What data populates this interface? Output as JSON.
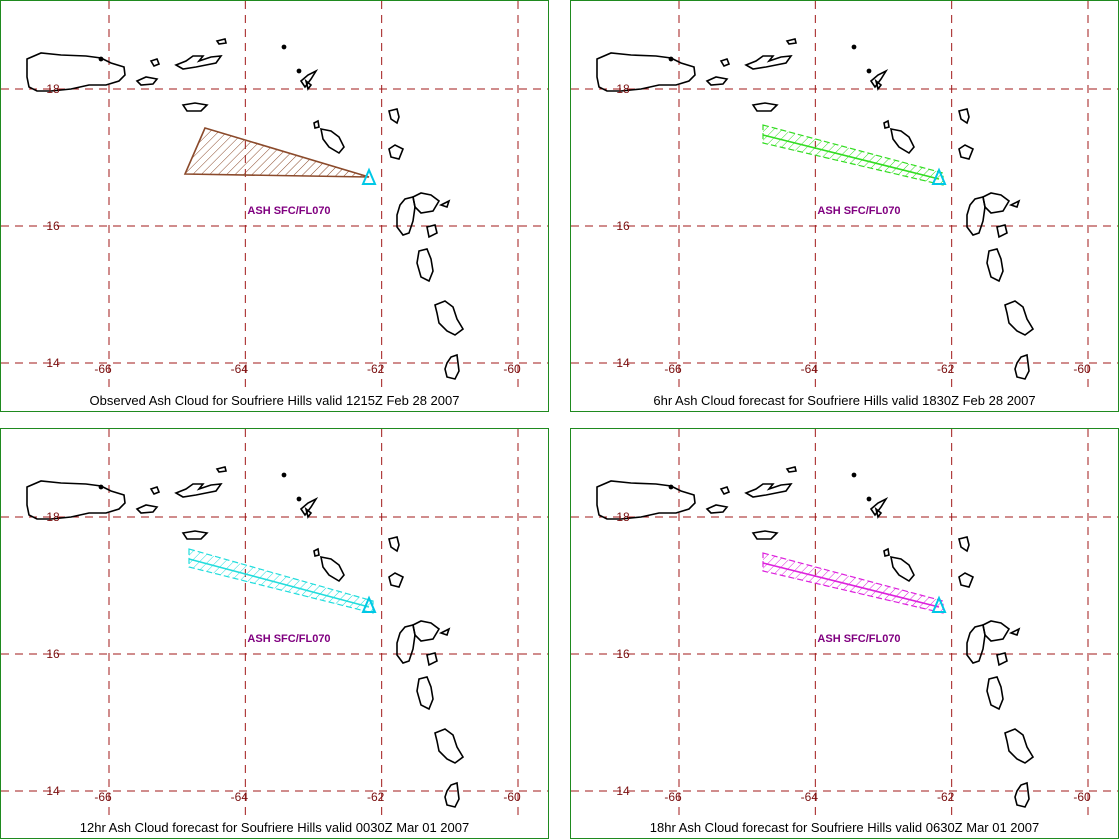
{
  "colors": {
    "grid": "#a01818",
    "tick_label": "#7a1010",
    "coast": "#000000",
    "volcano": "#00c8e6",
    "ash_label": "#800080",
    "panel_border": "#1f8a1f"
  },
  "map": {
    "lon_ticks": [
      "-66",
      "-64",
      "-62",
      "-60"
    ],
    "lat_ticks": [
      "14",
      "16",
      "18"
    ]
  },
  "panels": [
    {
      "caption": "Observed Ash Cloud for Soufriere  Hills valid 1215Z Feb 28 2007",
      "ash_label": "ASH SFC/FL070",
      "plume_color": "#8b4a2b",
      "plume_style": "triangle"
    },
    {
      "caption": "6hr Ash Cloud forecast for Soufriere  Hills valid 1830Z Feb 28 2007",
      "ash_label": "ASH SFC/FL070",
      "plume_color": "#33dd22",
      "plume_style": "band"
    },
    {
      "caption": "12hr Ash Cloud forecast for Soufriere  Hills valid 0030Z Mar 01 2007",
      "ash_label": "ASH SFC/FL070",
      "plume_color": "#22dddd",
      "plume_style": "band"
    },
    {
      "caption": "18hr Ash Cloud forecast for Soufriere  Hills valid 0630Z Mar 01 2007",
      "ash_label": "ASH SFC/FL070",
      "plume_color": "#dd22dd",
      "plume_style": "band"
    }
  ]
}
